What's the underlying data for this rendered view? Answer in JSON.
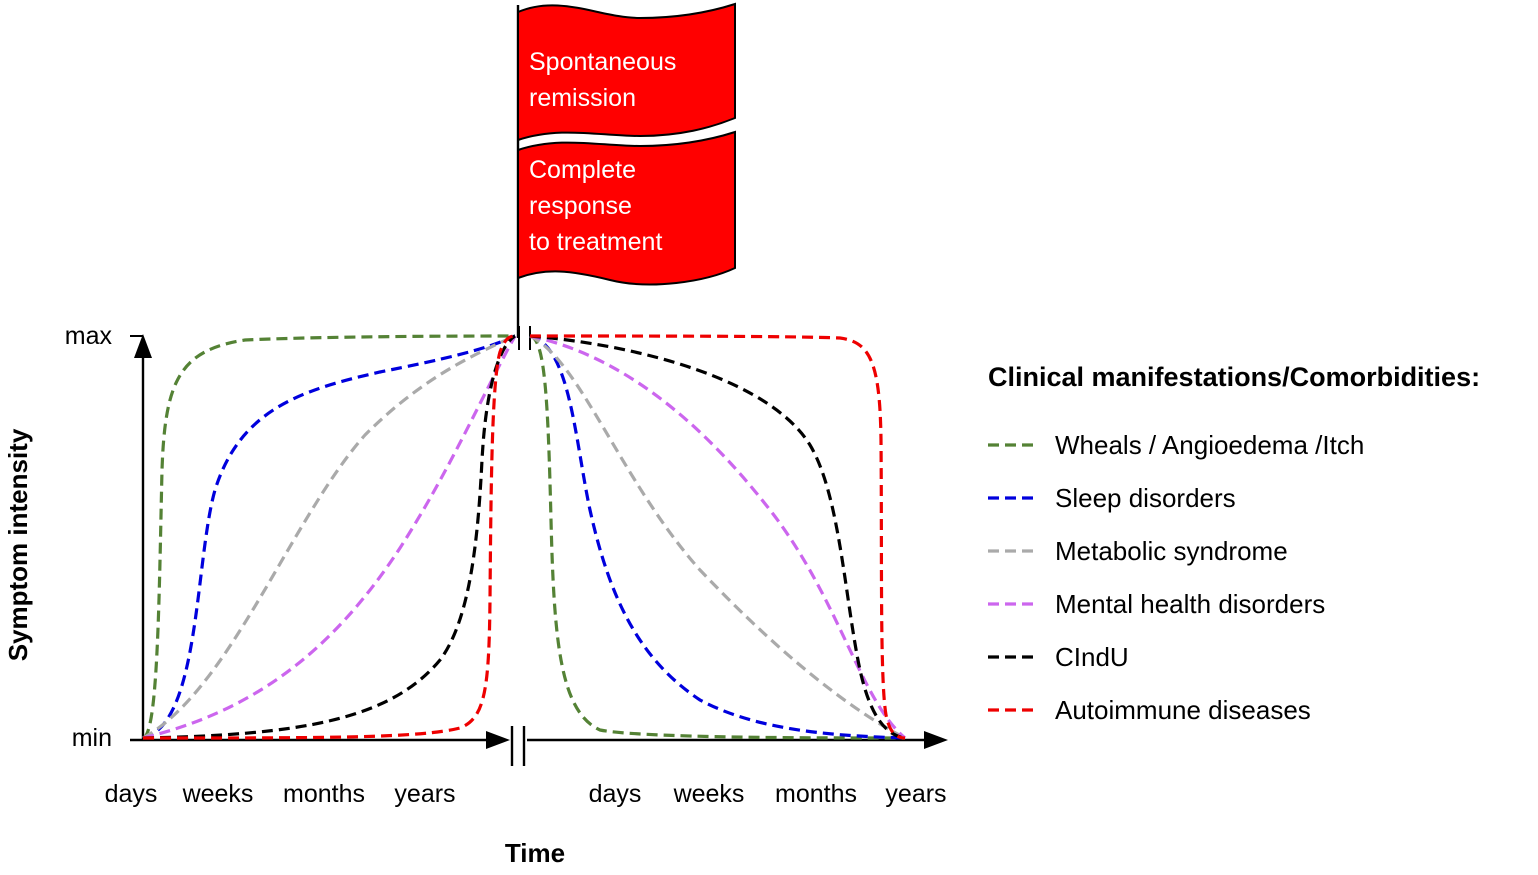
{
  "flag": {
    "top_lines": [
      "Spontaneous",
      "remission"
    ],
    "bottom_lines": [
      "Complete",
      "response",
      "to treatment"
    ],
    "color": "#ff0000"
  },
  "axes": {
    "ylabel": "Symptom intensity",
    "xlabel": "Time",
    "y_max_label": "max",
    "y_min_label": "min",
    "x_ticks_left": [
      "days",
      "weeks",
      "months",
      "years"
    ],
    "x_ticks_right": [
      "days",
      "weeks",
      "months",
      "years"
    ]
  },
  "legend": {
    "title": "Clinical manifestations/Comorbidities:",
    "items": [
      {
        "label": "Wheals / Angioedema /Itch",
        "color": "#548235"
      },
      {
        "label": "Sleep disorders",
        "color": "#0000dd"
      },
      {
        "label": "Metabolic syndrome",
        "color": "#aaaaaa"
      },
      {
        "label": "Mental health disorders",
        "color": "#cc66ee"
      },
      {
        "label": "CIndU",
        "color": "#000000"
      },
      {
        "label": "Autoimmune diseases",
        "color": "#ee0000"
      }
    ]
  }
}
